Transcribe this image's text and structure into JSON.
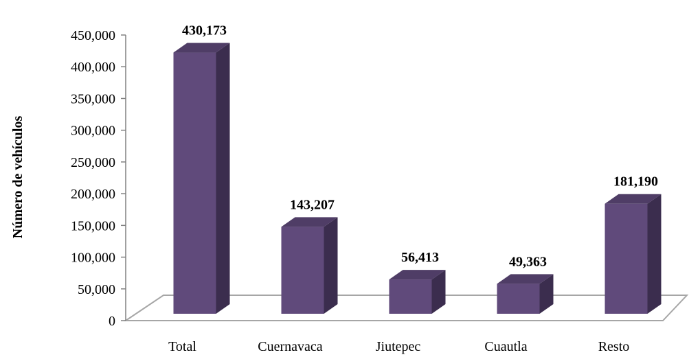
{
  "chart_data": {
    "type": "bar",
    "categories": [
      "Total",
      "Cuernavaca",
      "Jiutepec",
      "Cuautla",
      "Resto"
    ],
    "values": [
      430173,
      143207,
      56413,
      49363,
      181190
    ],
    "data_labels": [
      "430,173",
      "143,207",
      "56,413",
      "49,363",
      "181,190"
    ],
    "title": "",
    "xlabel": "",
    "ylabel": "Número de vehículos",
    "ylim": [
      0,
      450000
    ],
    "y_ticks": [
      0,
      50000,
      100000,
      150000,
      200000,
      250000,
      300000,
      350000,
      400000,
      450000
    ],
    "y_tick_labels": [
      "0",
      "50,000",
      "100,000",
      "150,000",
      "200,000",
      "250,000",
      "300,000",
      "350,000",
      "400,000",
      "450,000"
    ],
    "grid": false,
    "style": "3d-bar",
    "colors": {
      "front": "#604a7b",
      "side": "#3b2d4e",
      "top": "#4f3d66",
      "floor_edge": "#a6a6a6",
      "axis": "#808080"
    }
  }
}
